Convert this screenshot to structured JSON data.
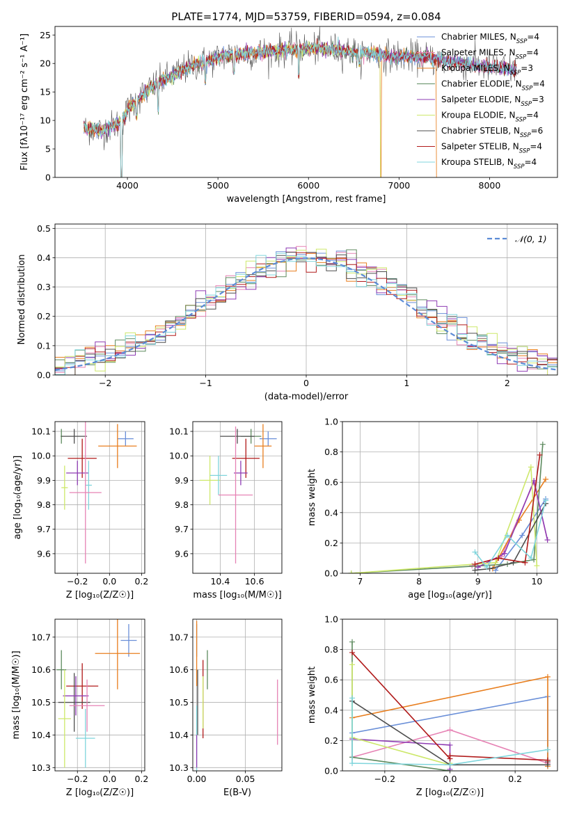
{
  "figure": {
    "title": "PLATE=1774, MJD=53759, FIBERID=0594, z=0.084"
  },
  "colors": {
    "Chabrier MILES": "#6a8fd8",
    "Salpeter MILES": "#e682b4",
    "Kroupa MILES": "#e87e1e",
    "Chabrier ELODIE": "#5d8a5e",
    "Salpeter ELODIE": "#8e3bb3",
    "Kroupa ELODIE": "#cde86a",
    "Chabrier STELIB": "#4d4d4d",
    "Salpeter STELIB": "#b01919",
    "Kroupa STELIB": "#7fd5dc",
    "gaussian": "#5b8bd6"
  },
  "chart_data": [
    {
      "id": "spectrum",
      "type": "line",
      "title": "PLATE=1774, MJD=53759, FIBERID=0594, z=0.084",
      "xlabel": "wavelength [Angstrom, rest frame]",
      "ylabel": "Flux [fλ10⁻¹⁷ erg cm⁻² s⁻¹ A⁻¹]",
      "xlim": [
        3200,
        8750
      ],
      "ylim": [
        0,
        26.5
      ],
      "xticks": [
        4000,
        5000,
        6000,
        7000,
        8000
      ],
      "yticks": [
        0,
        5,
        10,
        15,
        20,
        25
      ],
      "grid": false,
      "legend_loc": "upper right",
      "legend": [
        "Chabrier MILES, NSSP=4",
        "Salpeter MILES, NSSP=4",
        "Kroupa MILES, NSSP=3",
        "Chabrier ELODIE, NSSP=4",
        "Salpeter ELODIE, NSSP=3",
        "Kroupa ELODIE, NSSP=4",
        "Chabrier STELIB, NSSP=6",
        "Salpeter STELIB, NSSP=4",
        "Kroupa STELIB, NSSP=4"
      ],
      "continuum": {
        "x": [
          3520,
          3600,
          3700,
          3800,
          3900,
          3950,
          4000,
          4100,
          4200,
          4300,
          4400,
          4500,
          4700,
          4900,
          5100,
          5300,
          5500,
          5700,
          5900,
          6100,
          6300,
          6500,
          6700,
          6900,
          7100,
          7300,
          7500,
          7700,
          7900,
          8100,
          8300
        ],
        "y": [
          8.5,
          8.5,
          8.2,
          8.8,
          9.5,
          10.2,
          11.8,
          13.5,
          15.0,
          16.2,
          17.0,
          18.0,
          19.5,
          20.5,
          21.5,
          21.7,
          22.0,
          22.3,
          22.6,
          22.6,
          22.4,
          22.0,
          21.8,
          21.3,
          21.2,
          21.0,
          20.5,
          20.0,
          19.5,
          19.2,
          18.8
        ]
      },
      "dips": [
        {
          "x": 3934,
          "y": 0.0
        },
        {
          "x": 4102,
          "y": 11.0
        },
        {
          "x": 4340,
          "y": 12.0
        },
        {
          "x": 4861,
          "y": 16.8
        },
        {
          "x": 5175,
          "y": 18.5
        },
        {
          "x": 5893,
          "y": 18.0
        },
        {
          "x": 6563,
          "y": 20.0
        },
        {
          "x": 6800,
          "y": 0.0
        },
        {
          "x": 7420,
          "y": 0.0
        }
      ]
    },
    {
      "id": "residuals",
      "type": "step",
      "xlabel": "(data-model)/error",
      "ylabel": "Normed distribution",
      "xlim": [
        -2.5,
        2.5
      ],
      "ylim": [
        0,
        0.515
      ],
      "xticks": [
        -2,
        -1,
        0,
        1,
        2
      ],
      "yticks": [
        0.0,
        0.1,
        0.2,
        0.3,
        0.4,
        0.5
      ],
      "grid": true,
      "legend_loc": "upper right",
      "legend": [
        "𝒩(0, 1)"
      ],
      "bin_width": 0.1
    },
    {
      "id": "age_vs_Z",
      "type": "errorbar",
      "xlabel": "Z [log₁₀(Z/Z☉)]",
      "ylabel": "age  [log₁₀(age/yr)]",
      "xlim": [
        -0.34,
        0.22
      ],
      "ylim": [
        9.52,
        10.14
      ],
      "xticks": [
        -0.2,
        0.0,
        0.2
      ],
      "yticks": [
        9.6,
        9.7,
        9.8,
        9.9,
        10.0,
        10.1
      ],
      "grid": true,
      "points": [
        {
          "model": "Chabrier MILES",
          "x": 0.1,
          "xerr": 0.05,
          "y": 10.07,
          "yerr": 0.03
        },
        {
          "model": "Kroupa MILES",
          "x": 0.05,
          "xerr": 0.12,
          "y": 10.04,
          "yerr": 0.09
        },
        {
          "model": "Chabrier ELODIE",
          "x": -0.3,
          "xerr": 0.005,
          "y": 10.08,
          "yerr": 0.03
        },
        {
          "model": "Chabrier STELIB",
          "x": -0.22,
          "xerr": 0.08,
          "y": 10.08,
          "yerr": 0.03
        },
        {
          "model": "Salpeter STELIB",
          "x": -0.17,
          "xerr": 0.09,
          "y": 9.99,
          "yerr": 0.08
        },
        {
          "model": "Salpeter ELODIE",
          "x": -0.2,
          "xerr": 0.07,
          "y": 9.93,
          "yerr": 0.05
        },
        {
          "model": "Kroupa ELODIE",
          "x": -0.28,
          "xerr": 0.02,
          "y": 9.87,
          "yerr": 0.09
        },
        {
          "model": "Kroupa STELIB",
          "x": -0.13,
          "xerr": 0.02,
          "y": 9.88,
          "yerr": 0.1
        },
        {
          "model": "Salpeter MILES",
          "x": -0.15,
          "xerr": 0.1,
          "y": 9.85,
          "yerr": 0.29
        }
      ]
    },
    {
      "id": "age_vs_mass",
      "type": "errorbar",
      "xlabel": "mass [log₁₀(M/M☉)]",
      "ylabel": "",
      "xlim": [
        10.24,
        10.76
      ],
      "ylim": [
        9.52,
        10.14
      ],
      "xticks": [
        10.4,
        10.6
      ],
      "yticks": [
        9.6,
        9.7,
        9.8,
        9.9,
        10.0,
        10.1
      ],
      "grid": true,
      "points": [
        {
          "model": "Chabrier MILES",
          "x": 10.68,
          "xerr": 0.05,
          "y": 10.07,
          "yerr": 0.03
        },
        {
          "model": "Kroupa MILES",
          "x": 10.65,
          "xerr": 0.05,
          "y": 10.04,
          "yerr": 0.09
        },
        {
          "model": "Chabrier ELODIE",
          "x": 10.58,
          "xerr": 0.06,
          "y": 10.08,
          "yerr": 0.03
        },
        {
          "model": "Chabrier STELIB",
          "x": 10.5,
          "xerr": 0.1,
          "y": 10.08,
          "yerr": 0.03
        },
        {
          "model": "Salpeter STELIB",
          "x": 10.55,
          "xerr": 0.08,
          "y": 9.99,
          "yerr": 0.08
        },
        {
          "model": "Salpeter ELODIE",
          "x": 10.52,
          "xerr": 0.04,
          "y": 9.93,
          "yerr": 0.05
        },
        {
          "model": "Kroupa ELODIE",
          "x": 10.34,
          "xerr": 0.06,
          "y": 9.9,
          "yerr": 0.1
        },
        {
          "model": "Kroupa STELIB",
          "x": 10.39,
          "xerr": 0.05,
          "y": 9.92,
          "yerr": 0.08
        },
        {
          "model": "Salpeter MILES",
          "x": 10.49,
          "xerr": 0.1,
          "y": 9.84,
          "yerr": 0.28
        }
      ]
    },
    {
      "id": "weight_vs_age",
      "type": "line",
      "xlabel": "age  [log₁₀(age/yr)]",
      "ylabel": "mass weight",
      "xlim": [
        6.7,
        10.35
      ],
      "ylim": [
        0,
        1.0
      ],
      "xticks": [
        7,
        8,
        9,
        10
      ],
      "yticks": [
        0.0,
        0.2,
        0.4,
        0.6,
        0.8,
        1.0
      ],
      "grid": true,
      "series": [
        {
          "model": "Chabrier MILES",
          "x": [
            9.3,
            9.75,
            10.15
          ],
          "y": [
            0.02,
            0.25,
            0.49
          ]
        },
        {
          "model": "Salpeter MILES",
          "x": [
            8.9,
            9.4,
            9.95,
            10.18
          ],
          "y": [
            0.05,
            0.11,
            0.6,
            0.22
          ]
        },
        {
          "model": "Kroupa MILES",
          "x": [
            9.25,
            9.7,
            10.15
          ],
          "y": [
            0.03,
            0.35,
            0.62
          ]
        },
        {
          "model": "Chabrier ELODIE",
          "x": [
            6.85,
            9.5,
            9.95,
            10.1
          ],
          "y": [
            0.0,
            0.06,
            0.09,
            0.85
          ]
        },
        {
          "model": "Salpeter ELODIE",
          "x": [
            9.0,
            9.45,
            9.95,
            10.18
          ],
          "y": [
            0.04,
            0.13,
            0.61,
            0.22
          ]
        },
        {
          "model": "Kroupa ELODIE",
          "x": [
            6.85,
            9.3,
            9.9,
            10.0
          ],
          "y": [
            0.0,
            0.07,
            0.7,
            0.05
          ]
        },
        {
          "model": "Chabrier STELIB",
          "x": [
            8.95,
            9.2,
            9.6,
            10.15
          ],
          "y": [
            0.02,
            0.03,
            0.07,
            0.46
          ]
        },
        {
          "model": "Salpeter STELIB",
          "x": [
            8.95,
            9.35,
            9.8,
            10.05
          ],
          "y": [
            0.06,
            0.1,
            0.07,
            0.78
          ]
        },
        {
          "model": "Kroupa STELIB",
          "x": [
            8.95,
            9.15,
            9.5,
            9.9,
            10.15
          ],
          "y": [
            0.14,
            0.04,
            0.25,
            0.1,
            0.48
          ]
        }
      ]
    },
    {
      "id": "mass_vs_Z",
      "type": "errorbar",
      "xlabel": "Z [log₁₀(Z/Z☉)]",
      "ylabel": "mass [log₁₀(M/M☉)]",
      "xlim": [
        -0.34,
        0.22
      ],
      "ylim": [
        10.29,
        10.755
      ],
      "xticks": [
        -0.2,
        0.0,
        0.2
      ],
      "yticks": [
        10.3,
        10.4,
        10.5,
        10.6,
        10.7
      ],
      "grid": true,
      "points": [
        {
          "model": "Chabrier MILES",
          "x": 0.12,
          "xerr": 0.05,
          "y": 10.69,
          "yerr": 0.05
        },
        {
          "model": "Kroupa MILES",
          "x": 0.05,
          "xerr": 0.14,
          "y": 10.65,
          "yerr": 0.11
        },
        {
          "model": "Chabrier ELODIE",
          "x": -0.3,
          "xerr": 0.03,
          "y": 10.6,
          "yerr": 0.06
        },
        {
          "model": "Salpeter STELIB",
          "x": -0.17,
          "xerr": 0.1,
          "y": 10.55,
          "yerr": 0.07
        },
        {
          "model": "Chabrier STELIB",
          "x": -0.22,
          "xerr": 0.1,
          "y": 10.5,
          "yerr": 0.09
        },
        {
          "model": "Salpeter ELODIE",
          "x": -0.21,
          "xerr": 0.08,
          "y": 10.52,
          "yerr": 0.06
        },
        {
          "model": "Salpeter MILES",
          "x": -0.14,
          "xerr": 0.11,
          "y": 10.49,
          "yerr": 0.08
        },
        {
          "model": "Kroupa ELODIE",
          "x": -0.28,
          "xerr": 0.04,
          "y": 10.45,
          "yerr": 0.15
        },
        {
          "model": "Kroupa STELIB",
          "x": -0.15,
          "xerr": 0.06,
          "y": 10.39,
          "yerr": 0.09
        }
      ]
    },
    {
      "id": "mass_vs_ebv",
      "type": "errorbar",
      "xlabel": "E(B-V)",
      "ylabel": "",
      "xlim": [
        -0.004,
        0.0875
      ],
      "ylim": [
        10.29,
        10.755
      ],
      "xticks": [
        0.0,
        0.05
      ],
      "yticks": [
        10.3,
        10.4,
        10.5,
        10.6,
        10.7
      ],
      "grid": true,
      "points": [
        {
          "model": "Chabrier MILES",
          "x": 0.0,
          "xerr": 0.0,
          "y": 10.69,
          "yerr": 0.05
        },
        {
          "model": "Kroupa MILES",
          "x": 0.0,
          "xerr": 0.0,
          "y": 10.65,
          "yerr": 0.1
        },
        {
          "model": "Chabrier ELODIE",
          "x": 0.011,
          "xerr": 0.0,
          "y": 10.6,
          "yerr": 0.06
        },
        {
          "model": "Salpeter STELIB",
          "x": 0.0065,
          "xerr": 0.0,
          "y": 10.51,
          "yerr": 0.12
        },
        {
          "model": "Kroupa ELODIE",
          "x": 0.0065,
          "xerr": 0.0,
          "y": 10.5,
          "yerr": 0.08
        },
        {
          "model": "Chabrier STELIB",
          "x": 0.001,
          "xerr": 0.0,
          "y": 10.5,
          "yerr": 0.1
        },
        {
          "model": "Salpeter MILES",
          "x": 0.083,
          "xerr": 0.0,
          "y": 10.47,
          "yerr": 0.1
        },
        {
          "model": "Kroupa STELIB",
          "x": 0.0,
          "xerr": 0.0,
          "y": 10.39,
          "yerr": 0.1
        },
        {
          "model": "Salpeter ELODIE",
          "x": 0.0,
          "xerr": 0.0,
          "y": 10.35,
          "yerr": 0.05
        }
      ]
    },
    {
      "id": "weight_vs_Z",
      "type": "line",
      "xlabel": "Z [log₁₀(Z/Z☉)]",
      "ylabel": "mass weight",
      "xlim": [
        -0.33,
        0.33
      ],
      "ylim": [
        0,
        1.0
      ],
      "xticks": [
        -0.2,
        0.0,
        0.2
      ],
      "yticks": [
        0.0,
        0.2,
        0.4,
        0.6,
        0.8,
        1.0
      ],
      "grid": true,
      "series": [
        {
          "model": "Chabrier MILES",
          "x": [
            -0.3,
            0.3,
            0.3
          ],
          "y": [
            0.25,
            0.49,
            0.03
          ]
        },
        {
          "model": "Salpeter MILES",
          "x": [
            -0.3,
            0.0,
            0.3
          ],
          "y": [
            0.09,
            0.27,
            0.05
          ]
        },
        {
          "model": "Kroupa MILES",
          "x": [
            -0.3,
            0.3,
            0.3
          ],
          "y": [
            0.35,
            0.62,
            0.03
          ]
        },
        {
          "model": "Chabrier ELODIE",
          "x": [
            -0.3,
            -0.3,
            0.0
          ],
          "y": [
            0.85,
            0.09,
            0.0
          ]
        },
        {
          "model": "Salpeter ELODIE",
          "x": [
            -0.3,
            0.0,
            0.0
          ],
          "y": [
            0.21,
            0.17,
            0.01
          ]
        },
        {
          "model": "Kroupa ELODIE",
          "x": [
            -0.3,
            -0.3,
            0.0,
            0.0
          ],
          "y": [
            0.7,
            0.22,
            0.04,
            0.05
          ]
        },
        {
          "model": "Chabrier STELIB",
          "x": [
            -0.3,
            0.0,
            0.3,
            0.3
          ],
          "y": [
            0.46,
            0.04,
            0.04,
            0.06
          ]
        },
        {
          "model": "Salpeter STELIB",
          "x": [
            -0.3,
            0.0,
            0.0,
            0.3
          ],
          "y": [
            0.78,
            0.08,
            0.1,
            0.07
          ]
        },
        {
          "model": "Kroupa STELIB",
          "x": [
            -0.3,
            -0.3,
            0.0,
            0.3
          ],
          "y": [
            0.48,
            0.05,
            0.04,
            0.14
          ]
        }
      ]
    }
  ]
}
